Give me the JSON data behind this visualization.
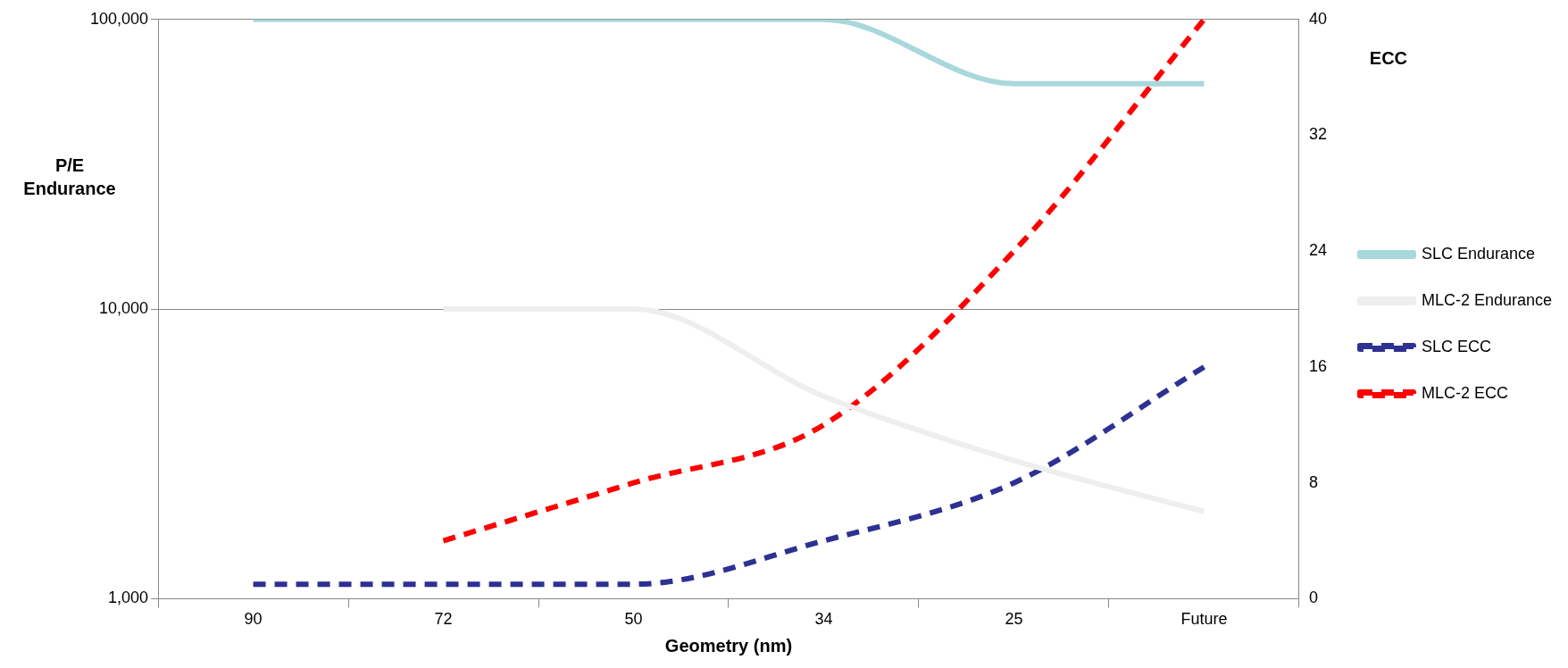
{
  "chart_data": {
    "type": "line",
    "xlabel": "Geometry (nm)",
    "ylabel": "P/E Endurance",
    "y2label": "ECC",
    "categories": [
      "90",
      "72",
      "50",
      "34",
      "25",
      "Future"
    ],
    "series": [
      {
        "name": "SLC Endurance",
        "color": "#a8d8dc",
        "values": [
          100000,
          100000,
          100000,
          100000,
          60000,
          60000
        ],
        "line_style": "solid"
      },
      {
        "name": "MLC-2 Endurance",
        "color": "#eeeeee",
        "values": [
          null,
          10000,
          10000,
          5000,
          3000,
          2000
        ],
        "line_style": "solid"
      },
      {
        "name": "SLC ECC",
        "color": "#2e3192",
        "values": [
          1,
          1,
          1,
          4,
          8,
          16
        ],
        "axis": "y2",
        "line_style": "dashed"
      },
      {
        "name": "MLC-2 ECC",
        "color": "#ff0000",
        "values": [
          null,
          4,
          8,
          12,
          24,
          40
        ],
        "axis": "y2",
        "line_style": "dashed"
      }
    ],
    "log": "y",
    "ylim": [
      1000,
      100000
    ],
    "yticks": [
      {
        "value": 1000,
        "label": "1,000"
      },
      {
        "value": 10000,
        "label": "10,000"
      },
      {
        "value": 100000,
        "label": "100,000"
      }
    ],
    "y2lim": [
      0,
      40
    ],
    "y2ticks": [
      0,
      8,
      16,
      24,
      32,
      40
    ],
    "grid": "y",
    "legend": "right",
    "marker": "none"
  }
}
